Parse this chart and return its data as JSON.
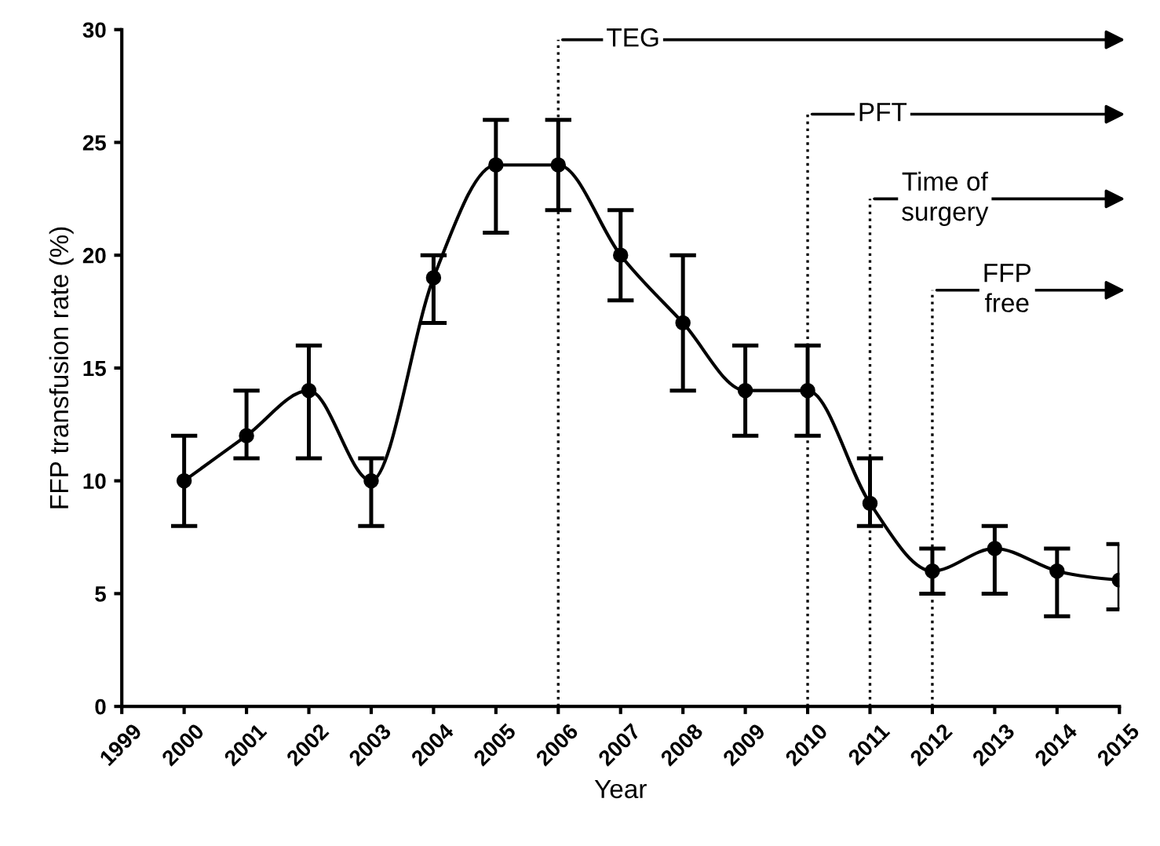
{
  "chart_data": {
    "type": "line",
    "xlabel": "Year",
    "ylabel": "FFP transfusion rate (%)",
    "x": [
      2000,
      2001,
      2002,
      2003,
      2004,
      2005,
      2006,
      2007,
      2008,
      2009,
      2010,
      2011,
      2012,
      2013,
      2014,
      2015
    ],
    "series": [
      {
        "color": "#000000",
        "values": [
          10,
          12,
          14,
          10,
          19,
          24,
          24,
          20,
          17,
          14,
          14,
          9,
          6,
          7,
          6,
          5.6
        ],
        "errors": [
          [
            8,
            12
          ],
          [
            11,
            14
          ],
          [
            11,
            16
          ],
          [
            8,
            11
          ],
          [
            17,
            20
          ],
          [
            21,
            26
          ],
          [
            22,
            26
          ],
          [
            18,
            22
          ],
          [
            14,
            20
          ],
          [
            12,
            16
          ],
          [
            12,
            16
          ],
          [
            8,
            11
          ],
          [
            5,
            7
          ],
          [
            5,
            8
          ],
          [
            4,
            7
          ],
          [
            4.3,
            7.2
          ]
        ]
      }
    ],
    "xlim": [
      1999,
      2015
    ],
    "xticks": [
      1999,
      2000,
      2001,
      2002,
      2003,
      2004,
      2005,
      2006,
      2007,
      2008,
      2009,
      2010,
      2011,
      2012,
      2013,
      2014,
      2015
    ],
    "ylim": [
      0,
      30
    ],
    "yticks": [
      0,
      5,
      10,
      15,
      20,
      25,
      30
    ],
    "marker": "circle",
    "line_style": "solid",
    "grid": false,
    "ref_lines": [
      {
        "axis": "x",
        "value": 2006,
        "label": "TEG",
        "line_style": "dotted",
        "color": "#000000"
      },
      {
        "axis": "x",
        "value": 2010,
        "label": "PFT",
        "line_style": "dotted",
        "color": "#000000"
      },
      {
        "axis": "x",
        "value": 2011,
        "label": "Time of\nsurgery",
        "line_style": "dotted",
        "color": "#000000"
      },
      {
        "axis": "x",
        "value": 2012,
        "label": "FFP\nfree",
        "line_style": "dotted",
        "color": "#000000"
      }
    ]
  }
}
